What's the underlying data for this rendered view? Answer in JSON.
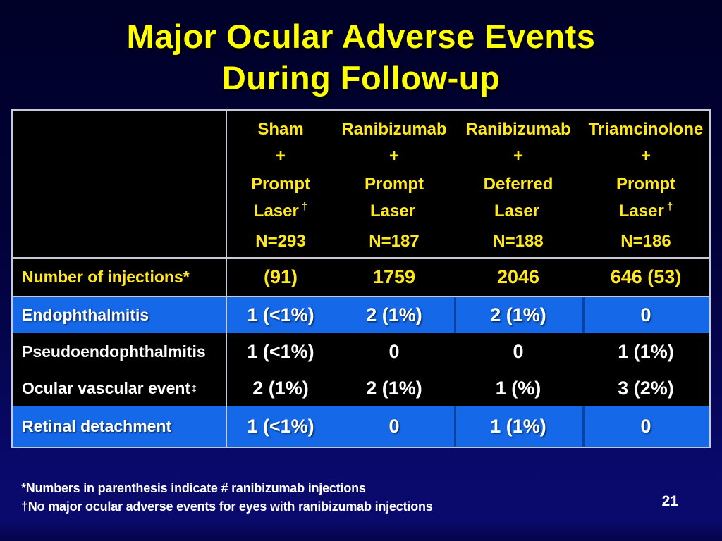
{
  "slide": {
    "title_line1": "Major Ocular Adverse Events",
    "title_line2": "During Follow-up",
    "page_number": "21"
  },
  "table": {
    "columns": [
      {
        "name": "Sham",
        "plus": "+",
        "timing": "Prompt",
        "laser": "Laser",
        "dagger": "†",
        "n": "N=293"
      },
      {
        "name": "Ranibizumab",
        "plus": "+",
        "timing": "Prompt",
        "laser": "Laser",
        "dagger": "",
        "n": "N=187"
      },
      {
        "name": "Ranibizumab",
        "plus": "+",
        "timing": "Deferred",
        "laser": "Laser",
        "dagger": "",
        "n": "N=188"
      },
      {
        "name": "Triamcinolone",
        "plus": "+",
        "timing": "Prompt",
        "laser": "Laser",
        "dagger": "†",
        "n": "N=186"
      }
    ],
    "rows": [
      {
        "label": "Number of injections*",
        "sup": "",
        "values": [
          "(91)",
          "1759",
          "2046",
          "646 (53)"
        ]
      },
      {
        "label": "Endophthalmitis",
        "sup": "",
        "values": [
          "1 (<1%)",
          "2 (1%)",
          "2 (1%)",
          "0"
        ]
      },
      {
        "label": "Pseudoendophthalmitis",
        "sup": "",
        "values": [
          "1 (<1%)",
          "0",
          "0",
          "1 (1%)"
        ]
      },
      {
        "label": "Ocular vascular event",
        "sup": "‡",
        "values": [
          "2 (1%)",
          "2 (1%)",
          "1 (%)",
          "3 (2%)"
        ]
      },
      {
        "label": "Retinal detachment",
        "sup": "",
        "values": [
          "1 (<1%)",
          "0",
          "1 (1%)",
          "0"
        ]
      }
    ]
  },
  "footnotes": {
    "line1": "*Numbers in parenthesis indicate # ranibizumab injections",
    "line2": "†No major ocular adverse events for eyes with ranibizumab injections"
  },
  "colors": {
    "background_top": "#000128",
    "background_bottom": "#0A0A6E",
    "table_black": "#000000",
    "row_blue": "#1568E7",
    "grid_line": "#C6CAD4",
    "title_yellow": "#FFFF00",
    "accent_yellow": "#FFE81C",
    "text_white": "#FFFFFF"
  }
}
